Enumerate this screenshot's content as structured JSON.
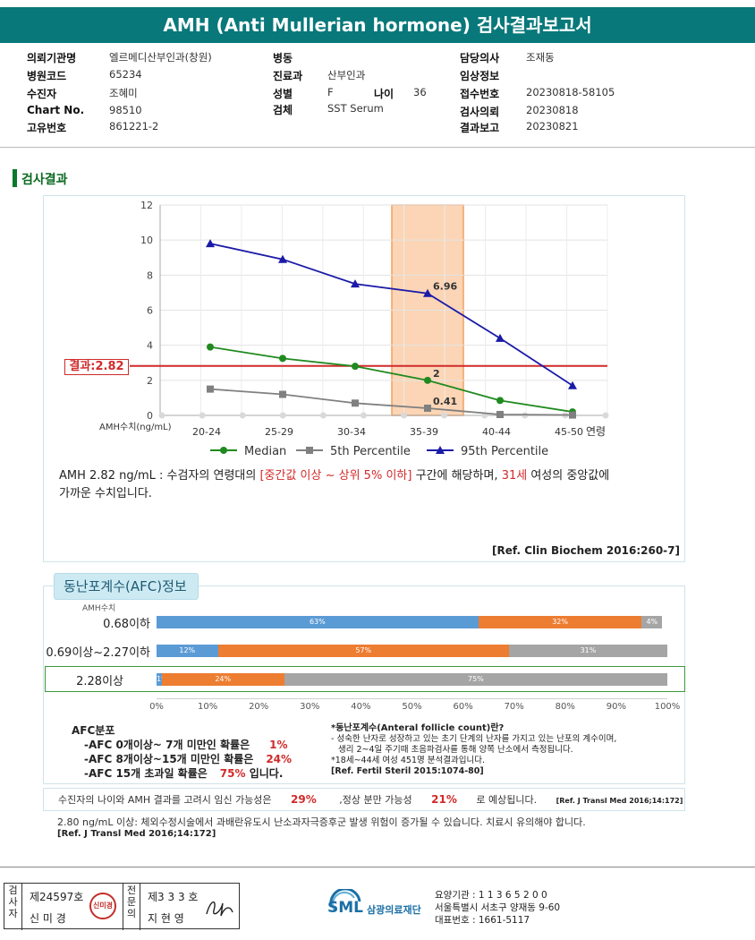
{
  "report": {
    "title": "AMH (Anti Mullerian hormone) 검사결과보고서"
  },
  "info": {
    "col1": [
      {
        "label": "의뢰기관명",
        "value": "엘르메디산부인과(창원)"
      },
      {
        "label": "병원코드",
        "value": "65234"
      },
      {
        "label": "수진자",
        "value": "조혜미"
      },
      {
        "label": "Chart No.",
        "value": "98510"
      },
      {
        "label": "고유번호",
        "value": "861221-2"
      }
    ],
    "col2": [
      {
        "label": "병동",
        "value": ""
      },
      {
        "label": "진료과",
        "value": "산부인과"
      },
      {
        "label": "성별",
        "value": "F"
      },
      {
        "label": "검체",
        "value": "SST Serum"
      }
    ],
    "age": {
      "label": "나이",
      "value": "36"
    },
    "col3": [
      {
        "label": "담당의사",
        "value": "조재동"
      },
      {
        "label": "임상정보",
        "value": ""
      },
      {
        "label": "접수번호",
        "value": "20230818-58105"
      },
      {
        "label": "검사의뢰",
        "value": "20230818"
      },
      {
        "label": "결과보고",
        "value": "20230821"
      }
    ]
  },
  "section_title": "검사결과",
  "result_label": "결과:2.82",
  "chart_data": {
    "type": "line",
    "categories": [
      "20-24",
      "25-29",
      "30-34",
      "35-39",
      "40-44",
      "45-50"
    ],
    "x_suffix": "연령",
    "ylabel": "AMH수치(ng/mL)",
    "yticks": [
      "0",
      "2",
      "4",
      "6",
      "8",
      "10",
      "12"
    ],
    "ylim": [
      0,
      12
    ],
    "highlight_category": "35-39",
    "result_value": 2.82,
    "series": [
      {
        "name": "Median",
        "color": "#1f8a1f",
        "marker": "circle",
        "values": [
          3.9,
          3.25,
          2.8,
          2.0,
          0.85,
          0.2
        ]
      },
      {
        "name": "5th Percentile",
        "color": "#808080",
        "marker": "square",
        "values": [
          1.5,
          1.2,
          0.7,
          0.41,
          0.05,
          0.02
        ]
      },
      {
        "name": "95th Percentile",
        "color": "#1a1aa8",
        "marker": "triangle",
        "values": [
          9.8,
          8.9,
          7.5,
          6.96,
          4.4,
          1.7
        ]
      }
    ],
    "point_labels": [
      {
        "series": 2,
        "index": 3,
        "text": "6.96"
      },
      {
        "series": 0,
        "index": 3,
        "text": "2"
      },
      {
        "series": 1,
        "index": 3,
        "text": "0.41"
      }
    ],
    "grid": true,
    "legend": "bottom"
  },
  "interpretation": {
    "p1": "AMH 2.82 ng/mL : 수검자의 연령대의 ",
    "hl1": "[중간값 이상 ~ 상위 5% 이하]",
    "p2": " 구간에 해당하며, ",
    "hl2": "31세",
    "p3": " 여성의 중앙값에",
    "p4": "가까운 수치입니다.",
    "ref": "[Ref. Clin Biochem 2016:260-7]"
  },
  "afc": {
    "tab_title": "동난포계수(AFC)정보",
    "unit": "AMH수치",
    "axis": [
      "0%",
      "10%",
      "20%",
      "30%",
      "40%",
      "50%",
      "60%",
      "70%",
      "80%",
      "90%",
      "100%"
    ],
    "rows": [
      {
        "label": "0.68이하",
        "blue": 63,
        "orange": 32,
        "gray": 4,
        "blue_txt": "63%",
        "orange_txt": "32%",
        "gray_txt": "4%"
      },
      {
        "label": "0.69이상~2.27이하",
        "blue": 12,
        "orange": 57,
        "gray": 31,
        "blue_txt": "12%",
        "orange_txt": "57%",
        "gray_txt": "31%"
      },
      {
        "label": "2.28이상",
        "blue": 1,
        "orange": 24,
        "gray": 75,
        "blue_txt": "1%",
        "orange_txt": "24%",
        "gray_txt": "75%"
      }
    ],
    "colors": {
      "blue": "#5b9bd5",
      "orange": "#ed7d31",
      "gray": "#a5a5a5"
    },
    "dist_title": "AFC분포",
    "dist": [
      {
        "text": "-AFC 0개이상~ 7개 미만인 확률은",
        "value": "1%",
        "tail": ""
      },
      {
        "text": "-AFC 8개이상~15개 미만인 확률은",
        "value": "24%",
        "tail": ""
      },
      {
        "text": "-AFC 15개 초과일 확률은",
        "value": "75%",
        "tail": " 입니다."
      }
    ],
    "note_title": "*동난포계수(Anteral follicle count)란?",
    "note_l1": "- 성숙한 난자로 성장하고 있는 초기 단계의 난자를 가지고 있는 난포의 계수이며,",
    "note_l2": "생리 2~4일 주기때 초음파검사를 통해 양쪽 난소에서 측정됩니다.",
    "note_l3": "*18세~44세 여성 451명 분석결과입니다.",
    "note_ref": "[Ref. Fertil Steril 2015:1074-80]"
  },
  "possibility": {
    "t1": "수진자의 나이와 AMH 결과를 고려시 임신 가능성은",
    "v1": "29%",
    "t2": ",정상 분만 가능성",
    "v2": "21%",
    "t3": "로 예상됩니다.",
    "ref": "[Ref. J Transl Med 2016;14:172]"
  },
  "warning": {
    "text": "2.80 ng/mL 이상: 체외수정시술에서 과배란유도시 난소과자극증후군 발생 위험이 증가될 수 있습니다. 치료시 유의해야 합니다.",
    "ref": "[Ref. J Transl Med 2016;14:172]"
  },
  "signature": {
    "tester_lbl": "검사자",
    "tester_no": "제24597호",
    "tester_name": "신 미 경",
    "tester_seal": "신미경",
    "doctor_lbl": "전문의",
    "doctor_no": "제3 3 3 호",
    "doctor_name": "지 현 영"
  },
  "org": {
    "logo": "SML",
    "name": "삼광의료재단",
    "line1": "요양기관 : 1 1 3 6 5 2 0 0",
    "line2": "서울특별시 서초구 양재동 9-60",
    "line3": "대표번호 : 1661-5117"
  }
}
